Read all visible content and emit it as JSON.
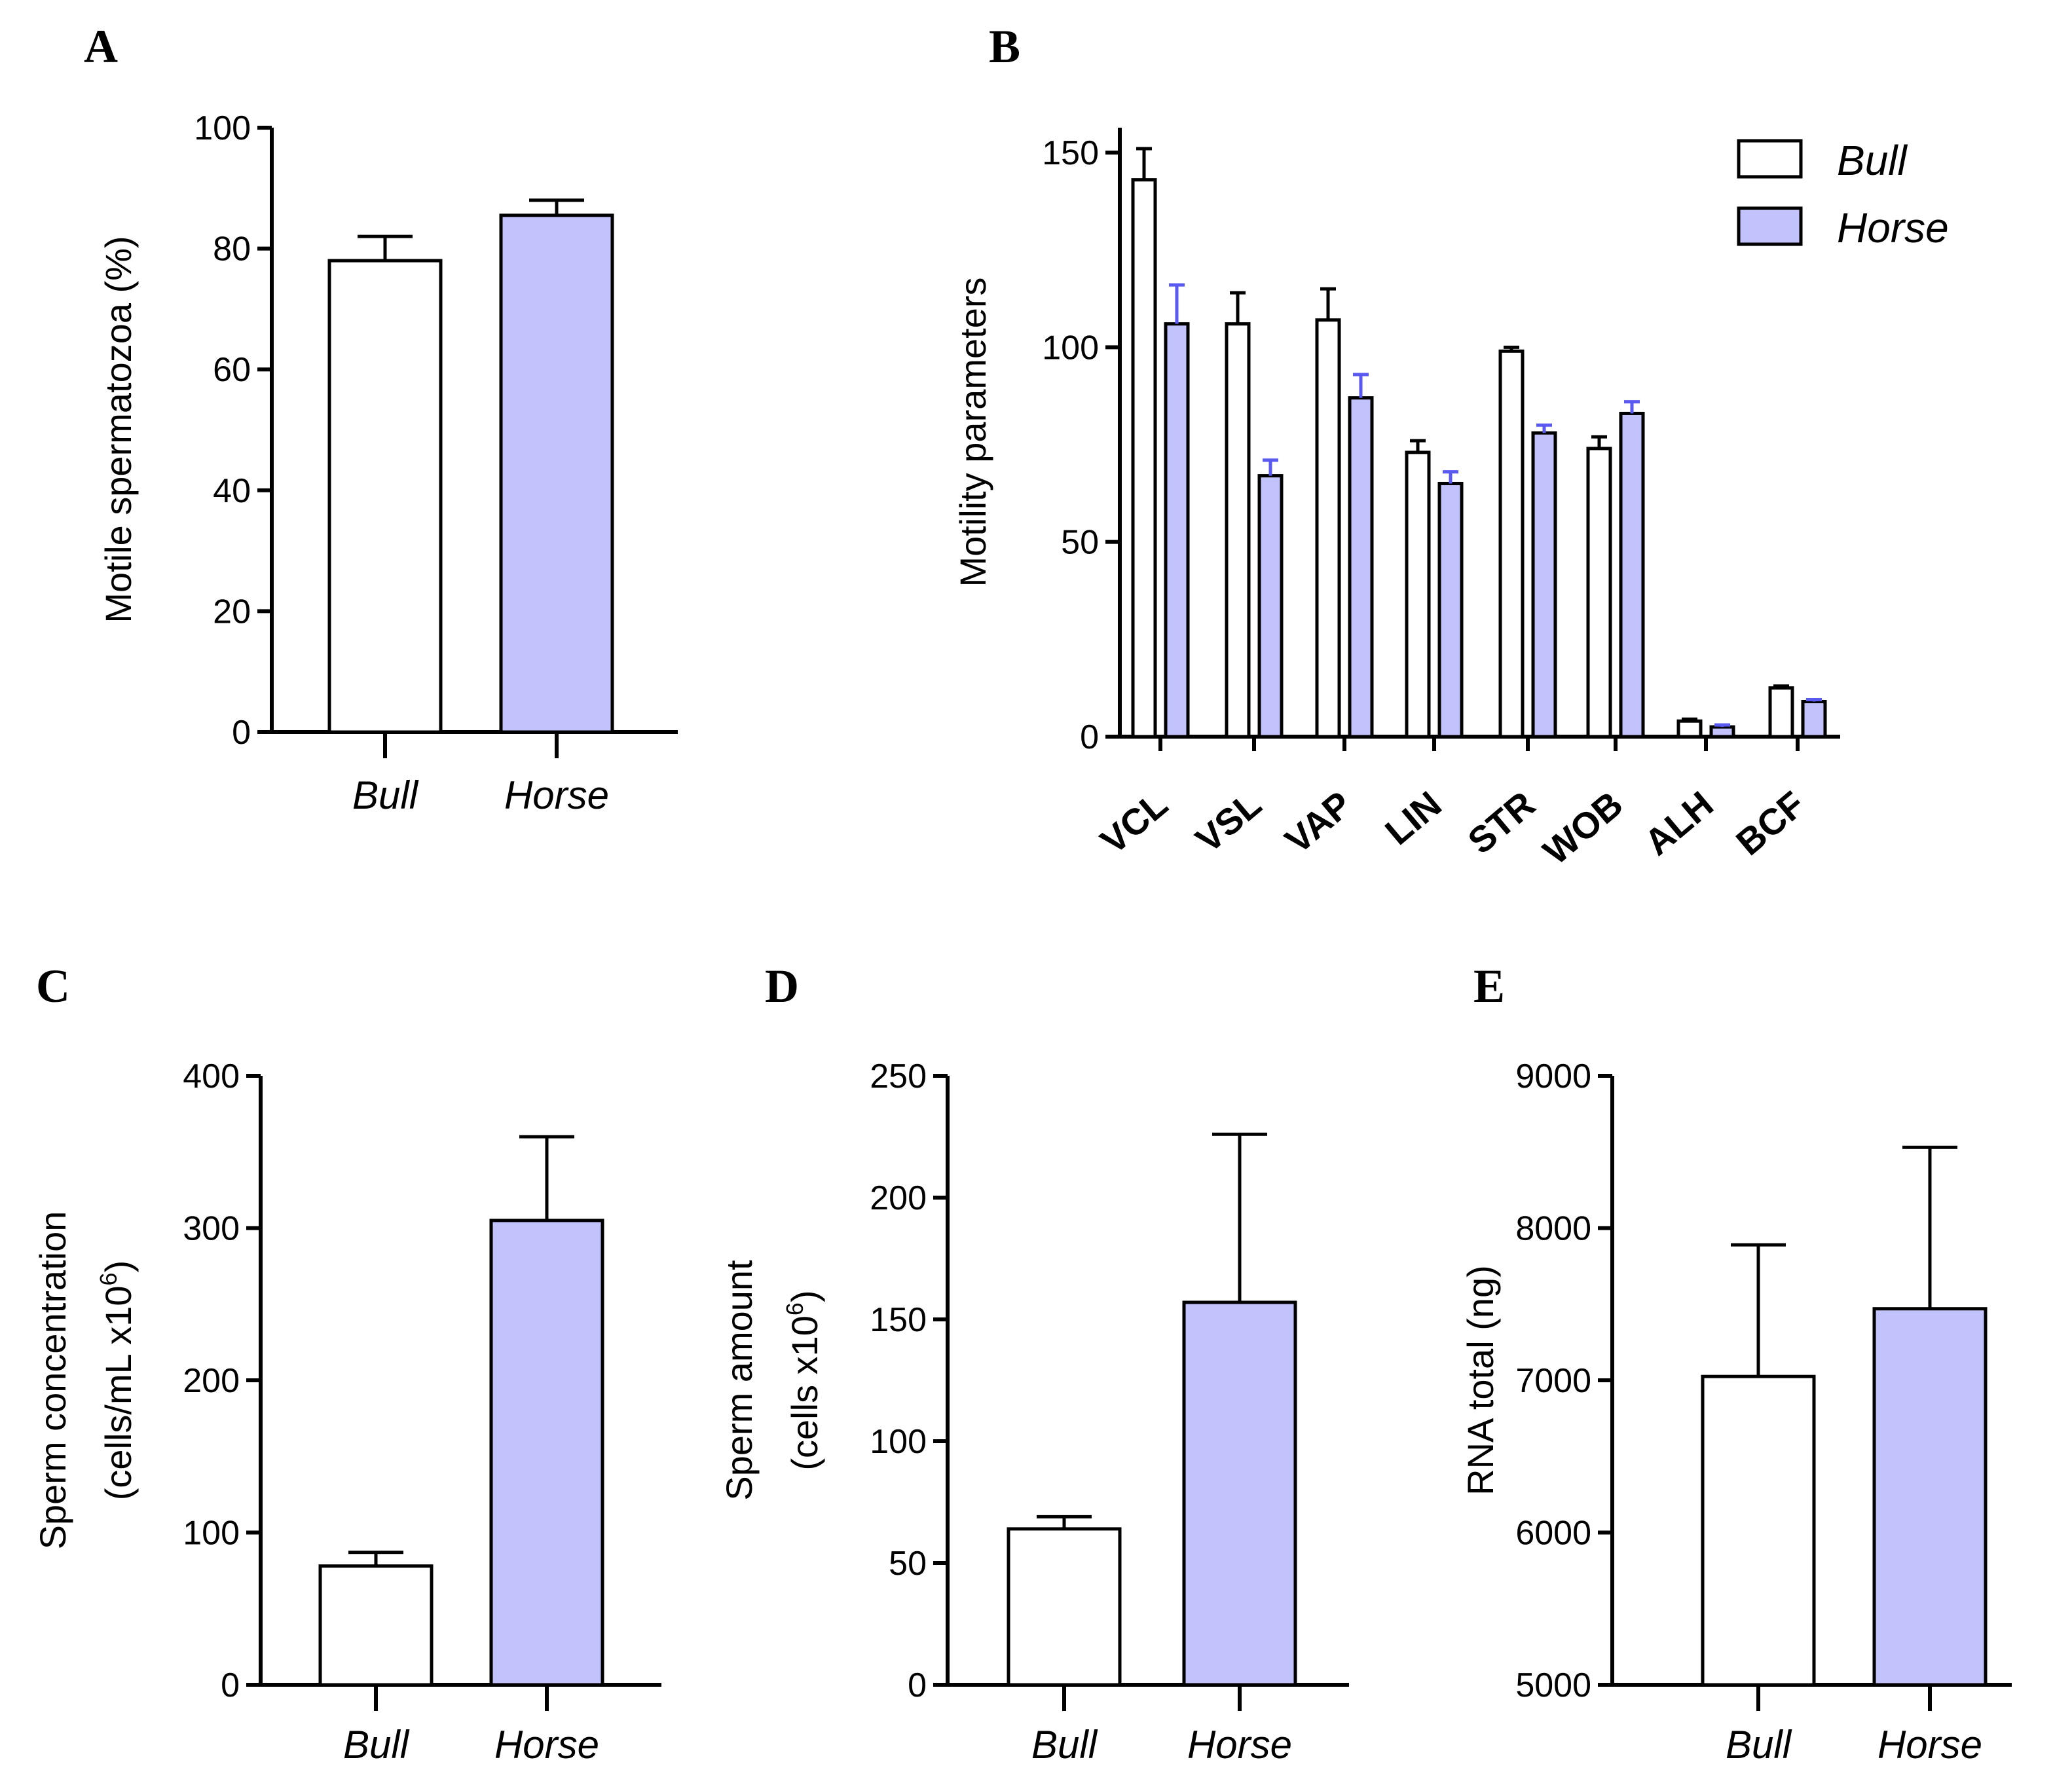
{
  "colors": {
    "bull": "#ffffff",
    "horse": "#c2c2fc",
    "horse_error": "#5a5af0",
    "axis": "#000000"
  },
  "panels": {
    "a": "A",
    "b": "B",
    "c": "C",
    "d": "D",
    "e": "E"
  },
  "chart_data": [
    {
      "id": "A",
      "type": "bar",
      "categories": [
        "Bull",
        "Horse"
      ],
      "values": [
        78,
        85.5
      ],
      "errors": [
        4,
        2.5
      ],
      "ylabel": "Motile spermatozoa (%)",
      "ylim": [
        0,
        100
      ],
      "yticks": [
        0,
        20,
        40,
        60,
        80,
        100
      ]
    },
    {
      "id": "B",
      "type": "bar",
      "categories": [
        "VCL",
        "VSL",
        "VAP",
        "LIN",
        "STR",
        "WOB",
        "ALH",
        "BCF"
      ],
      "series": [
        {
          "name": "Bull",
          "values": [
            143,
            106,
            107,
            73,
            99,
            74,
            4,
            12.5
          ],
          "errors": [
            8,
            8,
            8,
            3,
            1,
            3,
            0.5,
            0.5
          ]
        },
        {
          "name": "Horse",
          "values": [
            106,
            67,
            87,
            65,
            78,
            83,
            2.5,
            9
          ],
          "errors": [
            10,
            4,
            6,
            3,
            2,
            3,
            0.5,
            0.5
          ]
        }
      ],
      "ylabel": "Motility parameters",
      "ylim": [
        0,
        150
      ],
      "yticks": [
        0,
        50,
        100,
        150
      ],
      "legend": [
        "Bull",
        "Horse"
      ],
      "legend_position": "top-right"
    },
    {
      "id": "C",
      "type": "bar",
      "categories": [
        "Bull",
        "Horse"
      ],
      "values": [
        78,
        305
      ],
      "errors": [
        9,
        55
      ],
      "ylabel_line1": "Sperm concentration",
      "ylabel_line2": "(cells/mL x10",
      "ylabel_sup": "6",
      "ylabel_end": ")",
      "ylim": [
        0,
        400
      ],
      "yticks": [
        0,
        100,
        200,
        300,
        400
      ]
    },
    {
      "id": "D",
      "type": "bar",
      "categories": [
        "Bull",
        "Horse"
      ],
      "values": [
        64,
        157
      ],
      "errors": [
        5,
        69
      ],
      "ylabel_line1": "Sperm amount",
      "ylabel_line2": "(cells x10",
      "ylabel_sup": "6",
      "ylabel_end": ")",
      "ylim": [
        0,
        250
      ],
      "yticks": [
        0,
        50,
        100,
        150,
        200,
        250
      ]
    },
    {
      "id": "E",
      "type": "bar",
      "categories": [
        "Bull",
        "Horse"
      ],
      "values": [
        7025,
        7470
      ],
      "errors": [
        865,
        1060
      ],
      "ylabel": "RNA  total (ng)",
      "ylim": [
        5000,
        9000
      ],
      "yticks": [
        5000,
        6000,
        7000,
        8000,
        9000
      ]
    }
  ]
}
